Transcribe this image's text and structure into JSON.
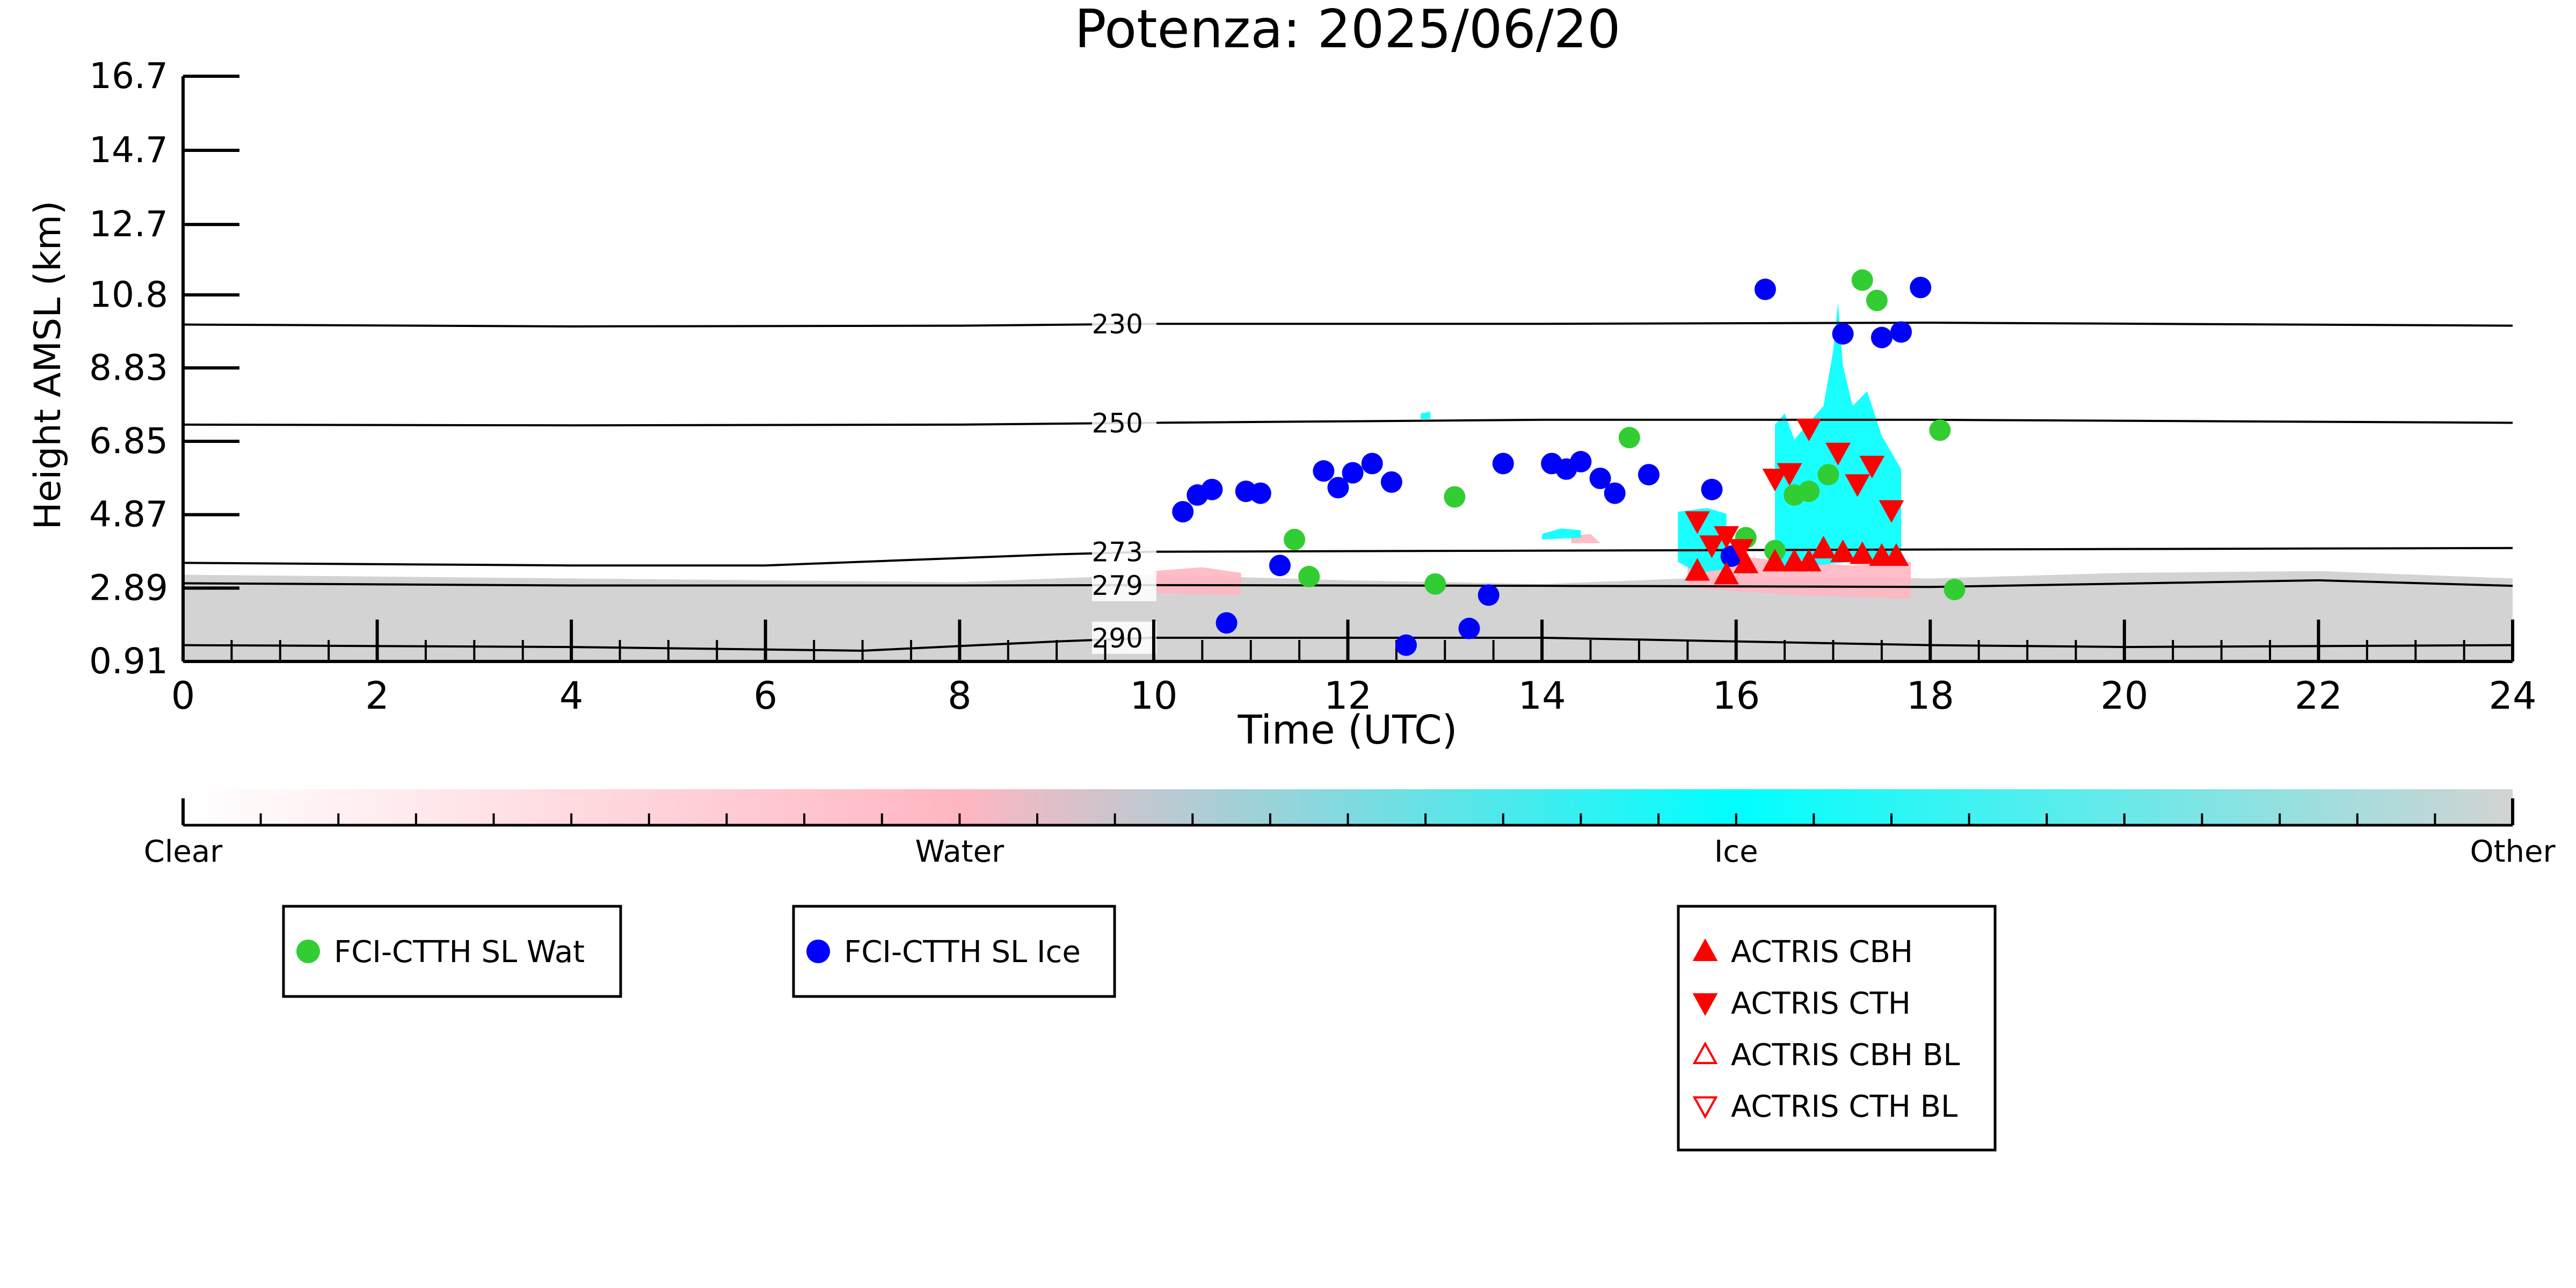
{
  "chart_data": {
    "type": "scatter",
    "title": "Potenza: 2025/06/20",
    "xlabel": "Time (UTC)",
    "ylabel": "Height AMSL (km)",
    "xlim": [
      0,
      24
    ],
    "ylim": [
      0.91,
      16.7
    ],
    "x_ticks": [
      0,
      2,
      4,
      6,
      8,
      10,
      12,
      14,
      16,
      18,
      20,
      22,
      24
    ],
    "y_ticks": [
      "0.91",
      "2.89",
      "4.87",
      "6.85",
      "8.83",
      "10.8",
      "12.7",
      "14.7",
      "16.7"
    ],
    "colorbar": {
      "labels": [
        "Clear",
        "Water",
        "Ice",
        "Other"
      ],
      "colors": [
        "#ffffff",
        "#ffb6c1",
        "#00ffff",
        "#d3d3d3"
      ]
    },
    "isotherms": [
      {
        "label": "230",
        "points": [
          [
            0,
            10.0
          ],
          [
            4,
            9.95
          ],
          [
            8,
            9.97
          ],
          [
            10,
            10.02
          ],
          [
            14,
            10.02
          ],
          [
            18,
            10.05
          ],
          [
            24,
            9.97
          ]
        ]
      },
      {
        "label": "250",
        "points": [
          [
            0,
            7.3
          ],
          [
            4,
            7.28
          ],
          [
            8,
            7.3
          ],
          [
            10,
            7.35
          ],
          [
            14,
            7.43
          ],
          [
            18,
            7.43
          ],
          [
            24,
            7.35
          ]
        ]
      },
      {
        "label": "273",
        "points": [
          [
            0,
            3.57
          ],
          [
            4,
            3.5
          ],
          [
            6,
            3.5
          ],
          [
            9,
            3.8
          ],
          [
            10,
            3.87
          ],
          [
            14,
            3.9
          ],
          [
            18,
            3.93
          ],
          [
            24,
            3.97
          ]
        ]
      },
      {
        "label": "279",
        "points": [
          [
            0,
            3.02
          ],
          [
            4,
            2.96
          ],
          [
            8,
            2.96
          ],
          [
            10,
            2.97
          ],
          [
            14,
            2.95
          ],
          [
            18,
            2.92
          ],
          [
            22,
            3.1
          ],
          [
            24,
            2.95
          ]
        ]
      },
      {
        "label": "290",
        "points": [
          [
            0,
            1.35
          ],
          [
            4,
            1.3
          ],
          [
            7,
            1.2
          ],
          [
            9,
            1.45
          ],
          [
            10,
            1.55
          ],
          [
            14,
            1.55
          ],
          [
            18,
            1.35
          ],
          [
            20,
            1.3
          ],
          [
            24,
            1.35
          ]
        ]
      }
    ],
    "series": [
      {
        "name": "FCI-CTTH SL Wat",
        "color": "#32cd32",
        "marker": "circle",
        "points": [
          [
            11.45,
            4.2
          ],
          [
            11.6,
            3.2
          ],
          [
            12.9,
            3.0
          ],
          [
            13.1,
            5.35
          ],
          [
            14.9,
            6.95
          ],
          [
            16.1,
            4.25
          ],
          [
            16.4,
            3.9
          ],
          [
            16.6,
            5.4
          ],
          [
            16.75,
            5.5
          ],
          [
            16.95,
            5.95
          ],
          [
            17.3,
            11.2
          ],
          [
            17.45,
            10.65
          ],
          [
            18.1,
            7.15
          ],
          [
            18.25,
            2.85
          ]
        ]
      },
      {
        "name": "FCI-CTTH SL Ice",
        "color": "#0000ff",
        "marker": "circle",
        "points": [
          [
            10.3,
            4.95
          ],
          [
            10.45,
            5.4
          ],
          [
            10.6,
            5.55
          ],
          [
            10.75,
            1.95
          ],
          [
            10.95,
            5.5
          ],
          [
            11.1,
            5.45
          ],
          [
            11.3,
            3.5
          ],
          [
            11.75,
            6.05
          ],
          [
            11.9,
            5.6
          ],
          [
            12.05,
            6.0
          ],
          [
            12.25,
            6.25
          ],
          [
            12.45,
            5.75
          ],
          [
            12.6,
            1.35
          ],
          [
            13.25,
            1.8
          ],
          [
            13.45,
            2.7
          ],
          [
            13.6,
            6.25
          ],
          [
            14.1,
            6.25
          ],
          [
            14.25,
            6.1
          ],
          [
            14.4,
            6.3
          ],
          [
            14.6,
            5.85
          ],
          [
            14.75,
            5.45
          ],
          [
            15.1,
            5.95
          ],
          [
            15.75,
            5.55
          ],
          [
            15.95,
            3.75
          ],
          [
            16.3,
            10.95
          ],
          [
            17.1,
            9.75
          ],
          [
            17.5,
            9.65
          ],
          [
            17.7,
            9.8
          ],
          [
            17.9,
            11.0
          ]
        ]
      },
      {
        "name": "ACTRIS CBH",
        "color": "#ff0000",
        "marker": "triangle-up",
        "points": [
          [
            15.6,
            3.35
          ],
          [
            15.9,
            3.25
          ],
          [
            16.1,
            3.55
          ],
          [
            16.4,
            3.6
          ],
          [
            16.6,
            3.6
          ],
          [
            16.75,
            3.6
          ],
          [
            16.9,
            3.95
          ],
          [
            17.1,
            3.85
          ],
          [
            17.3,
            3.8
          ],
          [
            17.5,
            3.75
          ],
          [
            17.65,
            3.75
          ]
        ]
      },
      {
        "name": "ACTRIS CTH",
        "color": "#ff0000",
        "marker": "triangle-down",
        "points": [
          [
            15.6,
            4.7
          ],
          [
            15.75,
            4.05
          ],
          [
            15.9,
            4.3
          ],
          [
            16.05,
            3.95
          ],
          [
            16.4,
            5.85
          ],
          [
            16.55,
            6.0
          ],
          [
            16.75,
            7.2
          ],
          [
            17.05,
            6.55
          ],
          [
            17.25,
            5.7
          ],
          [
            17.4,
            6.2
          ],
          [
            17.6,
            5.0
          ]
        ]
      },
      {
        "name": "ACTRIS CBH BL",
        "color": "#ff0000",
        "marker": "triangle-up-open",
        "points": []
      },
      {
        "name": "ACTRIS CTH BL",
        "color": "#ff0000",
        "marker": "triangle-down-open",
        "points": []
      }
    ],
    "isotherm_label_x": 10,
    "grid": false,
    "legend_placement": "below"
  }
}
